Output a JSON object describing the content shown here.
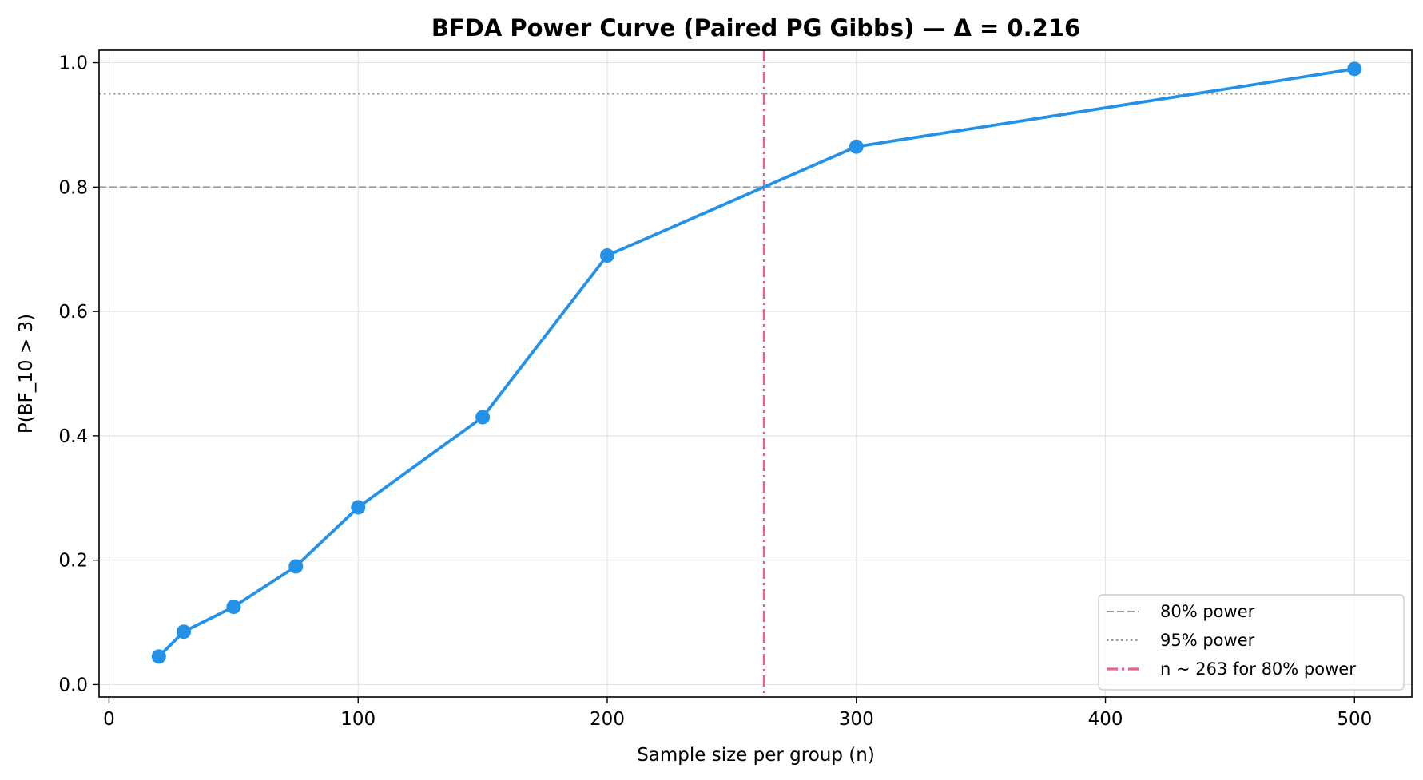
{
  "chart_data": {
    "type": "line",
    "title": "BFDA Power Curve (Paired PG Gibbs) — Δ = 0.216",
    "xlabel": "Sample size per group (n)",
    "ylabel": "P(BF_10 > 3)",
    "xlim": [
      -4,
      523
    ],
    "ylim": [
      -0.02,
      1.02
    ],
    "x_ticks": [
      0,
      100,
      200,
      300,
      400,
      500
    ],
    "y_ticks": [
      0.0,
      0.2,
      0.4,
      0.6,
      0.8,
      1.0
    ],
    "x_tick_labels": [
      "0",
      "100",
      "200",
      "300",
      "400",
      "500"
    ],
    "y_tick_labels": [
      "0.0",
      "0.2",
      "0.4",
      "0.6",
      "0.8",
      "1.0"
    ],
    "grid": true,
    "series": [
      {
        "x": [
          20,
          30,
          50,
          75,
          100,
          150,
          200,
          300,
          500
        ],
        "values": [
          0.045,
          0.085,
          0.125,
          0.19,
          0.285,
          0.43,
          0.69,
          0.865,
          0.99
        ],
        "color": "#2491e9",
        "marker": "circle"
      }
    ],
    "reference_lines": [
      {
        "orientation": "horizontal",
        "value": 0.8,
        "style": "dashed",
        "color": "#999999",
        "label": "80% power"
      },
      {
        "orientation": "horizontal",
        "value": 0.95,
        "style": "dotted",
        "color": "#999999",
        "label": "95% power"
      },
      {
        "orientation": "vertical",
        "value": 263,
        "style": "dashdot",
        "color": "#e8628f",
        "label": "n ~ 263 for 80% power"
      }
    ],
    "legend": {
      "position": "bottom-right",
      "entries": [
        "80% power",
        "95% power",
        "n ~ 263 for 80% power"
      ]
    }
  }
}
